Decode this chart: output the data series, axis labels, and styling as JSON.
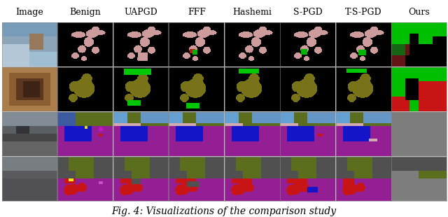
{
  "title": "Fig. 4: Visualizations of the comparison study",
  "col_labels": [
    "Image",
    "Benign",
    "UAPGD",
    "FFF",
    "Hashemi",
    "S-PGD",
    "T-S-PGD",
    "Ours"
  ],
  "n_rows": 4,
  "n_cols": 8,
  "figure_width": 6.4,
  "figure_height": 3.1,
  "title_fontsize": 10,
  "header_fontsize": 9,
  "background_color": "#ffffff",
  "colors": {
    "black": [
      0,
      0,
      0
    ],
    "pink": [
      205,
      155,
      155
    ],
    "olive": [
      120,
      115,
      25
    ],
    "green": [
      0,
      190,
      0
    ],
    "bright_green": [
      0,
      220,
      0
    ],
    "dark_red": [
      100,
      20,
      20
    ],
    "red": [
      200,
      20,
      20
    ],
    "bright_red": [
      220,
      30,
      30
    ],
    "purple": [
      148,
      30,
      148
    ],
    "blue": [
      20,
      20,
      200
    ],
    "navy": [
      0,
      0,
      160
    ],
    "teal": [
      80,
      140,
      160
    ],
    "light_blue": [
      100,
      160,
      210
    ],
    "dark_blue": [
      50,
      80,
      160
    ],
    "olive_green": [
      90,
      110,
      30
    ],
    "gray": [
      120,
      120,
      120
    ],
    "dark_gray": [
      80,
      80,
      80
    ],
    "light_gray": [
      160,
      165,
      165
    ],
    "pink_light": [
      210,
      170,
      175
    ],
    "yellow": [
      240,
      230,
      20
    ],
    "magenta": [
      200,
      20,
      200
    ],
    "brown": [
      100,
      60,
      30
    ],
    "dark_green": [
      20,
      100,
      20
    ]
  }
}
